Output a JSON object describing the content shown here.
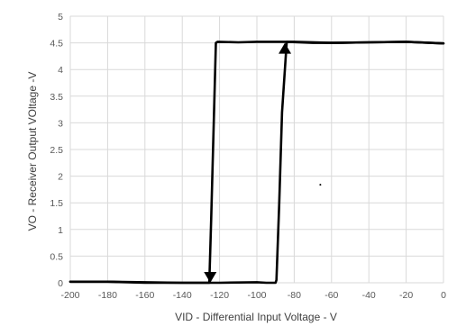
{
  "chart_data": {
    "type": "line",
    "title": "",
    "xlabel": "VID - Differential Input Voltage - V",
    "ylabel": "VO - Receiver Output VOltage -V",
    "xlim": [
      -200,
      0
    ],
    "ylim": [
      0,
      5
    ],
    "x_ticks": [
      "-200",
      "-180",
      "-160",
      "-140",
      "-120",
      "-100",
      "-80",
      "-60",
      "-40",
      "-20",
      "0"
    ],
    "y_ticks": [
      "0",
      "0.5",
      "1",
      "1.5",
      "2",
      "2.5",
      "3",
      "3.5",
      "4",
      "4.5",
      "5"
    ],
    "grid": true,
    "legend": "none",
    "series": [
      {
        "color": "#000000",
        "x": [
          -200,
          -180,
          -160,
          -140,
          -130,
          -125.5,
          -124.5,
          -122,
          -121,
          -110,
          -100,
          -90,
          -84,
          -70,
          -60,
          -40,
          -20,
          0
        ],
        "y": [
          0.02,
          0.02,
          0.0,
          0.0,
          0.0,
          0.0,
          1.2,
          4.5,
          4.52,
          4.51,
          4.52,
          4.52,
          4.52,
          4.5,
          4.5,
          4.51,
          4.52,
          4.49
        ]
      },
      {
        "color": "#000000",
        "x": [
          -200,
          -180,
          -160,
          -140,
          -120,
          -100,
          -95,
          -90,
          -89.5,
          -88,
          -86.5,
          -84,
          -80,
          -60,
          -40,
          -20,
          0
        ],
        "y": [
          0.02,
          0.02,
          0.01,
          0.0,
          0.0,
          0.01,
          0.0,
          0.0,
          0.05,
          1.5,
          3.2,
          4.52,
          4.52,
          4.5,
          4.51,
          4.52,
          4.49
        ]
      }
    ],
    "annotations": [
      {
        "type": "arrow",
        "direction": "down",
        "x": -125,
        "y_from": 4.5,
        "y_to": 0.0
      },
      {
        "type": "arrow",
        "direction": "up",
        "x": -85,
        "y_from": 0.0,
        "y_to": 4.5
      }
    ],
    "stray_marks": [
      {
        "x": -66,
        "y": 1.84
      }
    ]
  }
}
